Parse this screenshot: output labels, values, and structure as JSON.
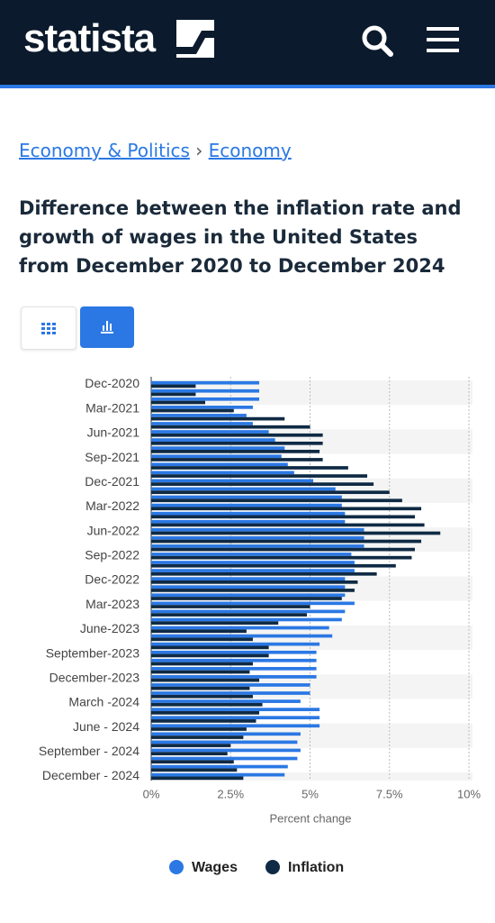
{
  "header": {
    "logo": "statista"
  },
  "breadcrumb": [
    "Economy & Politics",
    "›",
    "Economy"
  ],
  "chart_data": {
    "type": "bar",
    "orientation": "horizontal",
    "title": "Difference between the inflation rate and growth of wages in the United States from December 2020 to December 2024",
    "x_label": "Percent change",
    "categories": [
      "Dec-2020",
      null,
      null,
      "Mar-2021",
      null,
      null,
      "Jun-2021",
      null,
      null,
      "Sep-2021",
      null,
      null,
      "Dec-2021",
      null,
      null,
      "Mar-2022",
      null,
      null,
      "Jun-2022",
      null,
      null,
      "Sep-2022",
      null,
      null,
      "Dec-2022",
      null,
      null,
      "Mar-2023",
      null,
      null,
      "June-2023",
      null,
      null,
      "September-2023",
      null,
      null,
      "December-2023",
      null,
      null,
      "March -2024",
      null,
      null,
      "June - 2024",
      null,
      null,
      "September - 2024",
      null,
      null,
      "December - 2024"
    ],
    "series": [
      {
        "name": "Wages",
        "color": "#2b78e4",
        "values": [
          3.4,
          3.4,
          3.4,
          3.2,
          3.0,
          3.2,
          3.7,
          3.9,
          4.2,
          4.1,
          4.3,
          4.5,
          5.1,
          5.8,
          6.0,
          6.0,
          6.1,
          6.1,
          6.7,
          6.7,
          6.7,
          6.3,
          6.4,
          6.4,
          6.1,
          6.1,
          6.1,
          6.4,
          6.1,
          6.0,
          5.6,
          5.7,
          5.3,
          5.2,
          5.2,
          5.2,
          5.2,
          5.0,
          5.0,
          4.7,
          5.3,
          5.3,
          5.3,
          4.7,
          4.6,
          4.7,
          4.6,
          4.3,
          4.2
        ]
      },
      {
        "name": "Inflation",
        "color": "#0f2a44",
        "values": [
          1.4,
          1.4,
          1.7,
          2.6,
          4.2,
          5.0,
          5.4,
          5.4,
          5.3,
          5.4,
          6.2,
          6.8,
          7.0,
          7.5,
          7.9,
          8.5,
          8.3,
          8.6,
          9.1,
          8.5,
          8.3,
          8.2,
          7.7,
          7.1,
          6.5,
          6.4,
          6.0,
          5.0,
          4.9,
          4.0,
          3.0,
          3.2,
          3.7,
          3.7,
          3.2,
          3.1,
          3.4,
          3.1,
          3.2,
          3.5,
          3.4,
          3.3,
          3.0,
          2.9,
          2.5,
          2.4,
          2.6,
          2.7,
          2.9
        ]
      }
    ],
    "xlim": [
      0,
      10
    ],
    "xticks": [
      {
        "value": 0,
        "label": "0%"
      },
      {
        "value": 2.5,
        "label": "2.5%"
      },
      {
        "value": 5,
        "label": "5%"
      },
      {
        "value": 7.5,
        "label": "7.5%"
      },
      {
        "value": 10,
        "label": "10%"
      }
    ],
    "grid": true,
    "legend": "bottom"
  }
}
